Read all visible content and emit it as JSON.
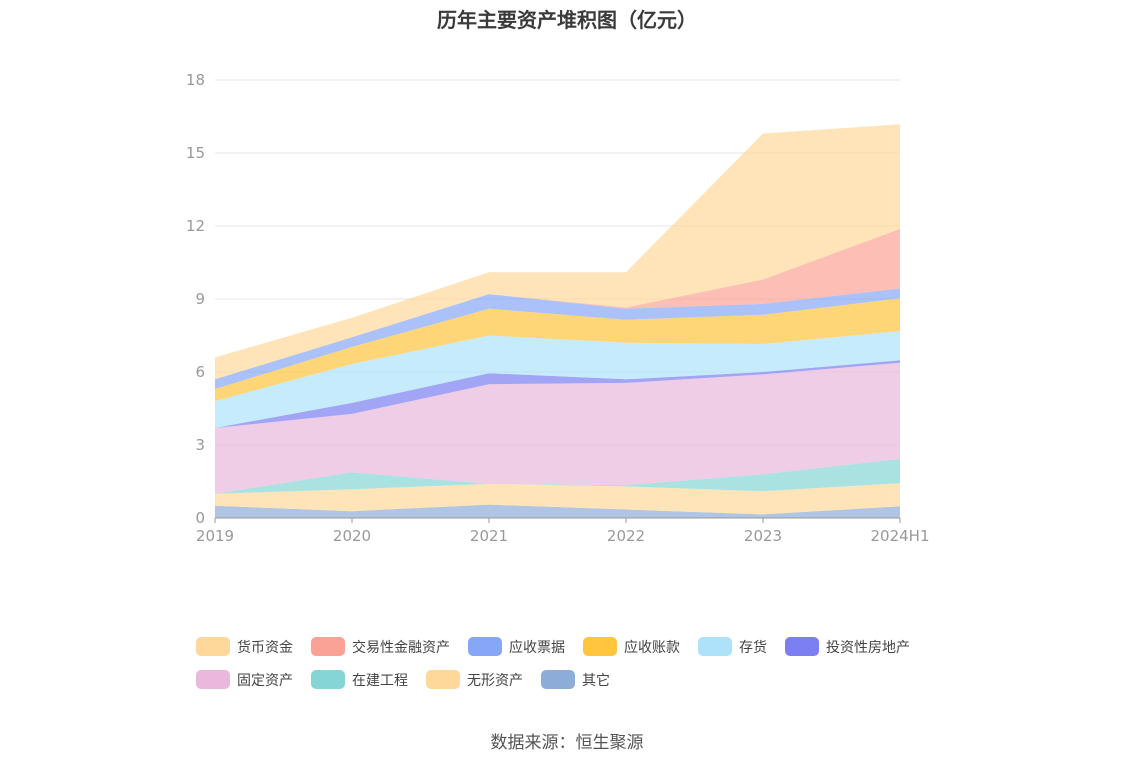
{
  "title": "历年主要资产堆积图（亿元）",
  "source": "数据来源：恒生聚源",
  "chart_data": {
    "type": "area",
    "stacked": true,
    "title": "历年主要资产堆积图（亿元）",
    "x": [
      "2019",
      "2020",
      "2021",
      "2022",
      "2023",
      "2024H1"
    ],
    "ylim": [
      0,
      18
    ],
    "yticks": [
      0,
      3,
      6,
      9,
      12,
      15,
      18
    ],
    "grid": true,
    "legend_position": "bottom",
    "series": [
      {
        "name": "其它",
        "color": "#8eacd8",
        "values": [
          0.5,
          0.28,
          0.55,
          0.35,
          0.15,
          0.48
        ]
      },
      {
        "name": "无形资产",
        "color": "#fdd89a",
        "values": [
          0.5,
          0.9,
          0.85,
          0.95,
          0.95,
          0.95
        ]
      },
      {
        "name": "在建工程",
        "color": "#86d5d5",
        "values": [
          0.0,
          0.7,
          0.0,
          0.05,
          0.7,
          1.0
        ]
      },
      {
        "name": "固定资产",
        "color": "#e9b8dc",
        "values": [
          2.7,
          2.4,
          4.1,
          4.2,
          4.1,
          3.95
        ]
      },
      {
        "name": "投资性房地产",
        "color": "#7b7ff1",
        "values": [
          0.0,
          0.45,
          0.45,
          0.15,
          0.1,
          0.1
        ]
      },
      {
        "name": "存货",
        "color": "#aee2fb",
        "values": [
          1.1,
          1.6,
          1.55,
          1.5,
          1.15,
          1.2
        ]
      },
      {
        "name": "应收账款",
        "color": "#ffc53d",
        "values": [
          0.5,
          0.7,
          1.1,
          0.95,
          1.2,
          1.35
        ]
      },
      {
        "name": "应收票据",
        "color": "#86a7f7",
        "values": [
          0.4,
          0.4,
          0.6,
          0.45,
          0.45,
          0.4
        ]
      },
      {
        "name": "交易性金融资产",
        "color": "#fba296",
        "values": [
          0.0,
          0.0,
          0.0,
          0.05,
          1.0,
          2.45
        ]
      },
      {
        "name": "货币资金",
        "color": "#fdd89a",
        "values": [
          0.9,
          0.8,
          0.9,
          1.45,
          6.0,
          4.3
        ]
      }
    ],
    "legend_order": [
      "货币资金",
      "交易性金融资产",
      "应收票据",
      "应收账款",
      "存货",
      "投资性房地产",
      "固定资产",
      "在建工程",
      "无形资产",
      "其它"
    ]
  }
}
